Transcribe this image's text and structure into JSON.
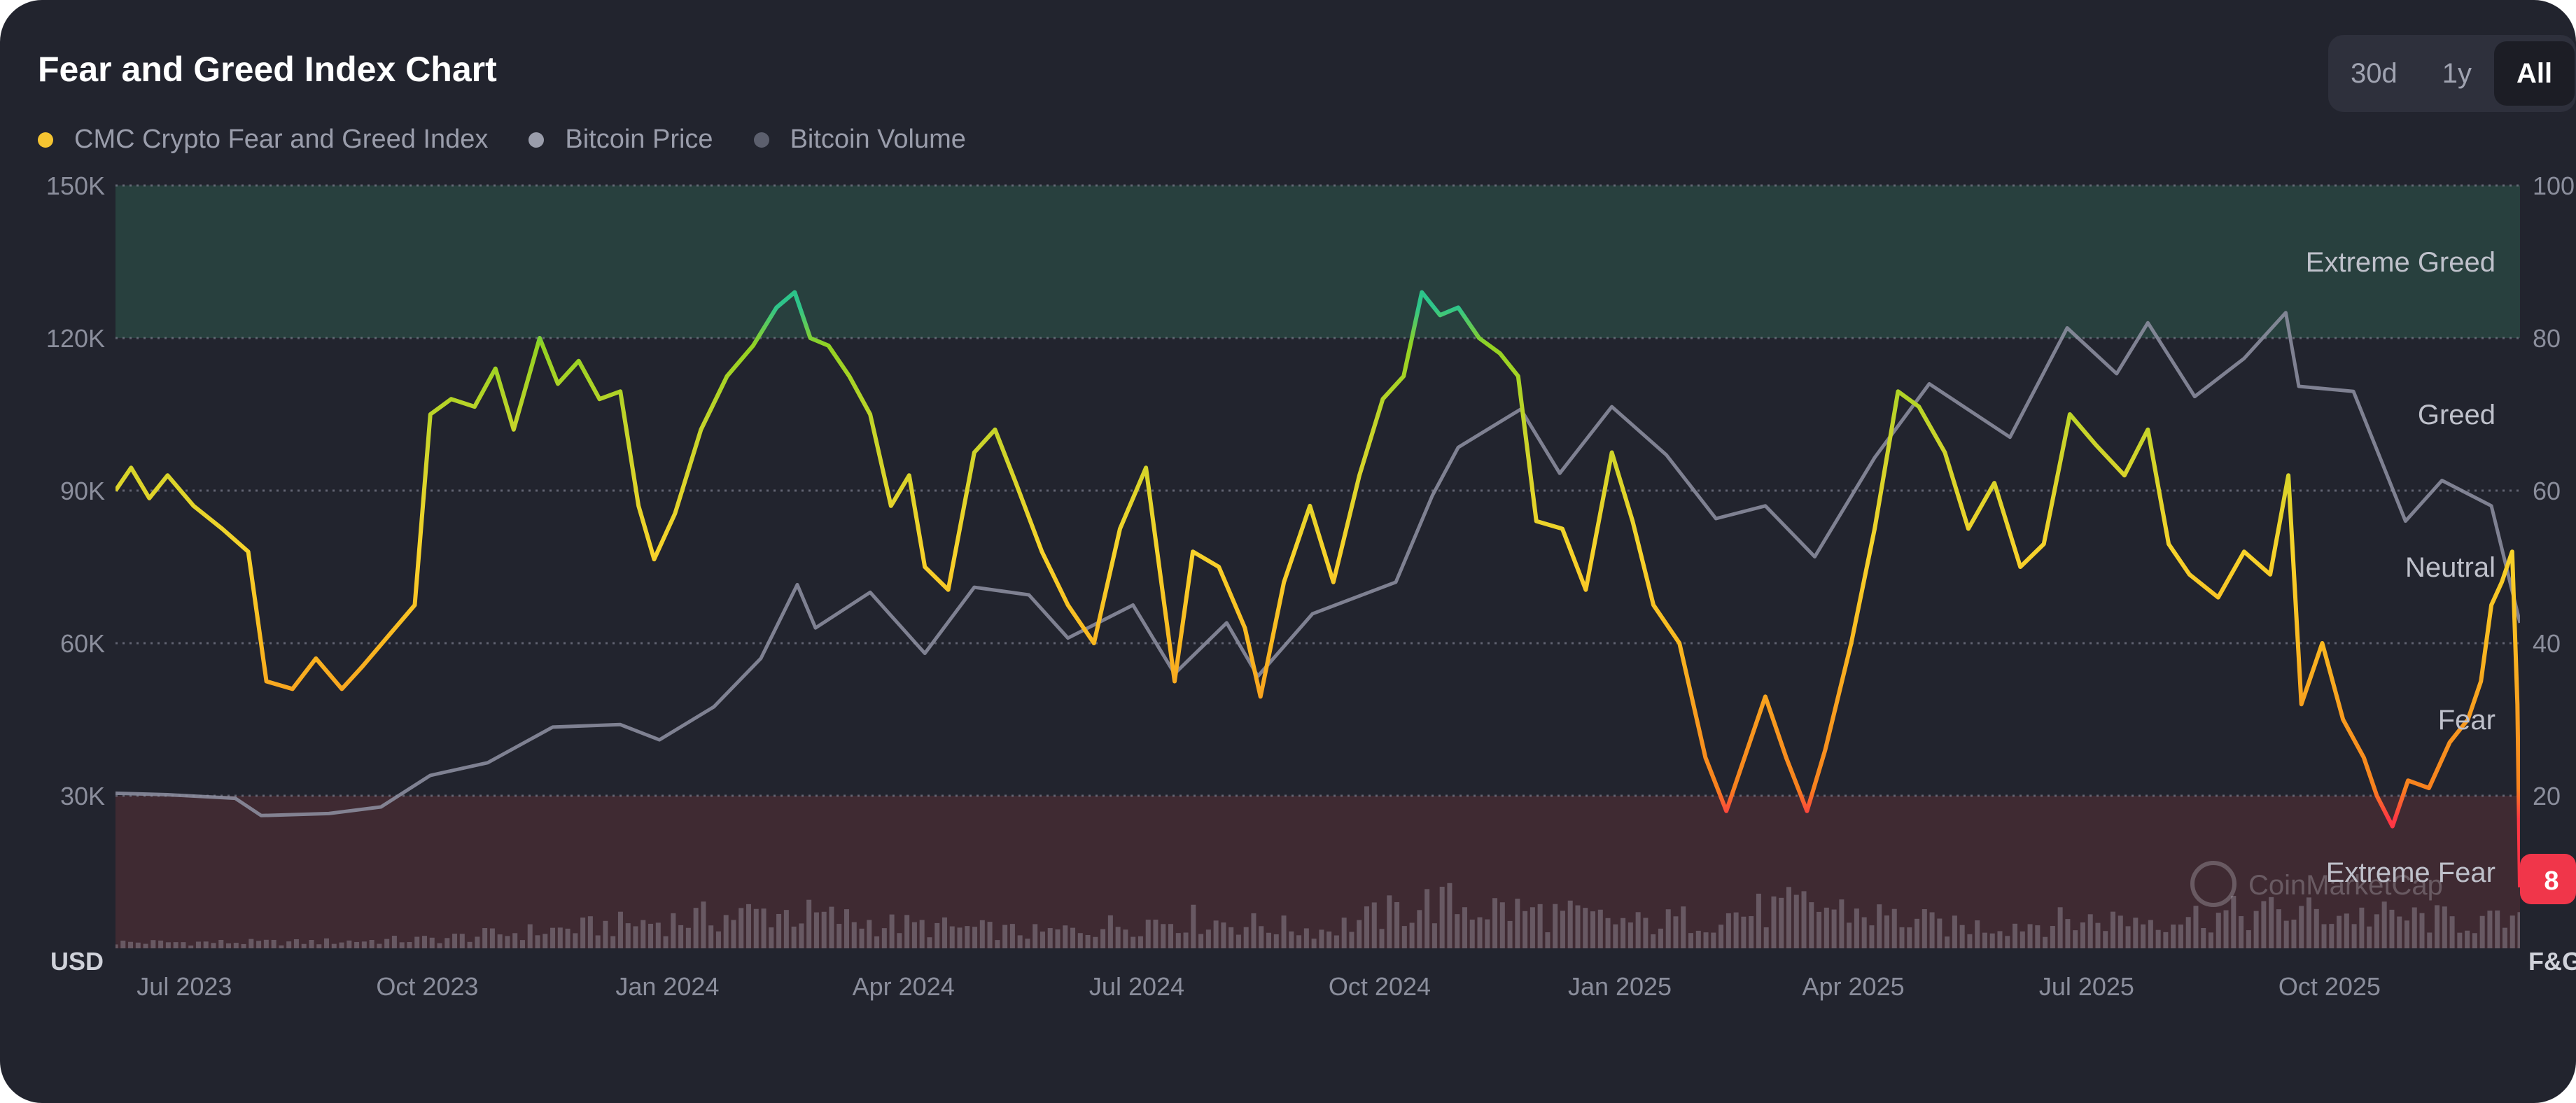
{
  "title": "Fear and Greed Index Chart",
  "range_buttons": [
    {
      "label": "30d",
      "active": false
    },
    {
      "label": "1y",
      "active": false
    },
    {
      "label": "All",
      "active": true
    }
  ],
  "legend": [
    {
      "label": "CMC Crypto Fear and Greed Index",
      "color": "#f5c431"
    },
    {
      "label": "Bitcoin Price",
      "color": "#9a9dab"
    },
    {
      "label": "Bitcoin Volume",
      "color": "#5c5f6d"
    }
  ],
  "current_value": "8",
  "watermark": "CoinMarketCap",
  "chart_data": {
    "type": "line",
    "title": "Fear and Greed Index Chart",
    "left_axis": {
      "label": "USD",
      "ticks": [
        "150K",
        "120K",
        "90K",
        "60K",
        "30K"
      ],
      "tick_values": [
        150000,
        120000,
        90000,
        60000,
        30000
      ],
      "range": [
        0,
        150000
      ]
    },
    "right_axis": {
      "label": "F&G",
      "ticks": [
        "100",
        "80",
        "60",
        "40",
        "20"
      ],
      "tick_values": [
        100,
        80,
        60,
        40,
        20
      ],
      "range": [
        0,
        100
      ]
    },
    "x_ticks": [
      {
        "label": "Jul 2023",
        "date": "2023-07-01"
      },
      {
        "label": "Oct 2023",
        "date": "2023-10-01"
      },
      {
        "label": "Jan 2024",
        "date": "2024-01-01"
      },
      {
        "label": "Apr 2024",
        "date": "2024-04-01"
      },
      {
        "label": "Jul 2024",
        "date": "2024-07-01"
      },
      {
        "label": "Oct 2024",
        "date": "2024-10-01"
      },
      {
        "label": "Jan 2025",
        "date": "2025-01-01"
      },
      {
        "label": "Apr 2025",
        "date": "2025-04-01"
      },
      {
        "label": "Jul 2025",
        "date": "2025-07-01"
      },
      {
        "label": "Oct 2025",
        "date": "2025-10-01"
      }
    ],
    "x_range": [
      "2023-06-25",
      "2026-01-04"
    ],
    "zones": [
      {
        "label": "Extreme Greed",
        "from": 80,
        "to": 100,
        "color": "#2b4a44"
      },
      {
        "label": "Greed",
        "from": 60,
        "to": 80
      },
      {
        "label": "Neutral",
        "from": 40,
        "to": 60
      },
      {
        "label": "Fear",
        "from": 20,
        "to": 40
      },
      {
        "label": "Extreme Fear",
        "from": 0,
        "to": 20,
        "color": "#4a2c34"
      }
    ],
    "grid": true,
    "legend_position": "top-left",
    "series": [
      {
        "name": "CMC Crypto Fear and Greed Index",
        "axis": "right",
        "points": [
          [
            "2023-06-25",
            60
          ],
          [
            "2023-07-01",
            63
          ],
          [
            "2023-07-08",
            59
          ],
          [
            "2023-07-15",
            62
          ],
          [
            "2023-07-25",
            58
          ],
          [
            "2023-08-05",
            55
          ],
          [
            "2023-08-15",
            52
          ],
          [
            "2023-08-22",
            35
          ],
          [
            "2023-09-01",
            34
          ],
          [
            "2023-09-10",
            38
          ],
          [
            "2023-09-20",
            34
          ],
          [
            "2023-09-28",
            37
          ],
          [
            "2023-10-08",
            41
          ],
          [
            "2023-10-18",
            45
          ],
          [
            "2023-10-24",
            70
          ],
          [
            "2023-11-01",
            72
          ],
          [
            "2023-11-10",
            71
          ],
          [
            "2023-11-18",
            76
          ],
          [
            "2023-11-25",
            68
          ],
          [
            "2023-12-05",
            80
          ],
          [
            "2023-12-12",
            74
          ],
          [
            "2023-12-20",
            77
          ],
          [
            "2023-12-28",
            72
          ],
          [
            "2024-01-05",
            73
          ],
          [
            "2024-01-12",
            58
          ],
          [
            "2024-01-18",
            51
          ],
          [
            "2024-01-26",
            57
          ],
          [
            "2024-02-05",
            68
          ],
          [
            "2024-02-15",
            75
          ],
          [
            "2024-02-25",
            79
          ],
          [
            "2024-03-05",
            84
          ],
          [
            "2024-03-12",
            86
          ],
          [
            "2024-03-18",
            80
          ],
          [
            "2024-03-25",
            79
          ],
          [
            "2024-04-02",
            75
          ],
          [
            "2024-04-10",
            70
          ],
          [
            "2024-04-18",
            58
          ],
          [
            "2024-04-25",
            62
          ],
          [
            "2024-05-01",
            50
          ],
          [
            "2024-05-10",
            47
          ],
          [
            "2024-05-20",
            65
          ],
          [
            "2024-05-28",
            68
          ],
          [
            "2024-06-05",
            61
          ],
          [
            "2024-06-15",
            52
          ],
          [
            "2024-06-25",
            45
          ],
          [
            "2024-07-05",
            40
          ],
          [
            "2024-07-15",
            55
          ],
          [
            "2024-07-25",
            63
          ],
          [
            "2024-08-05",
            35
          ],
          [
            "2024-08-12",
            52
          ],
          [
            "2024-08-22",
            50
          ],
          [
            "2024-09-01",
            42
          ],
          [
            "2024-09-07",
            33
          ],
          [
            "2024-09-16",
            48
          ],
          [
            "2024-09-26",
            58
          ],
          [
            "2024-10-05",
            48
          ],
          [
            "2024-10-15",
            62
          ],
          [
            "2024-10-24",
            72
          ],
          [
            "2024-11-01",
            75
          ],
          [
            "2024-11-08",
            86
          ],
          [
            "2024-11-15",
            83
          ],
          [
            "2024-11-22",
            84
          ],
          [
            "2024-11-30",
            80
          ],
          [
            "2024-12-08",
            78
          ],
          [
            "2024-12-15",
            75
          ],
          [
            "2024-12-22",
            56
          ],
          [
            "2025-01-01",
            55
          ],
          [
            "2025-01-10",
            47
          ],
          [
            "2025-01-20",
            65
          ],
          [
            "2025-01-28",
            56
          ],
          [
            "2025-02-05",
            45
          ],
          [
            "2025-02-15",
            40
          ],
          [
            "2025-02-25",
            25
          ],
          [
            "2025-03-05",
            18
          ],
          [
            "2025-03-12",
            25
          ],
          [
            "2025-03-20",
            33
          ],
          [
            "2025-03-28",
            25
          ],
          [
            "2025-04-05",
            18
          ],
          [
            "2025-04-12",
            26
          ],
          [
            "2025-04-22",
            40
          ],
          [
            "2025-05-01",
            55
          ],
          [
            "2025-05-10",
            73
          ],
          [
            "2025-05-18",
            71
          ],
          [
            "2025-05-28",
            65
          ],
          [
            "2025-06-06",
            55
          ],
          [
            "2025-06-16",
            61
          ],
          [
            "2025-06-26",
            50
          ],
          [
            "2025-07-05",
            53
          ],
          [
            "2025-07-15",
            70
          ],
          [
            "2025-07-25",
            66
          ],
          [
            "2025-08-05",
            62
          ],
          [
            "2025-08-14",
            68
          ],
          [
            "2025-08-22",
            53
          ],
          [
            "2025-08-30",
            49
          ],
          [
            "2025-09-10",
            46
          ],
          [
            "2025-09-20",
            52
          ],
          [
            "2025-09-30",
            49
          ],
          [
            "2025-10-07",
            62
          ],
          [
            "2025-10-12",
            32
          ],
          [
            "2025-10-20",
            40
          ],
          [
            "2025-10-28",
            30
          ],
          [
            "2025-11-05",
            25
          ],
          [
            "2025-11-10",
            20
          ],
          [
            "2025-11-16",
            16
          ],
          [
            "2025-11-22",
            22
          ],
          [
            "2025-11-30",
            21
          ],
          [
            "2025-12-08",
            27
          ],
          [
            "2025-12-15",
            30
          ],
          [
            "2025-12-20",
            35
          ],
          [
            "2025-12-24",
            45
          ],
          [
            "2025-12-28",
            48
          ],
          [
            "2026-01-01",
            52
          ],
          [
            "2026-01-03",
            32
          ],
          [
            "2026-01-04",
            8
          ]
        ]
      },
      {
        "name": "Bitcoin Price",
        "axis": "left",
        "points": [
          [
            "2023-06-25",
            30500
          ],
          [
            "2023-07-15",
            30200
          ],
          [
            "2023-08-10",
            29500
          ],
          [
            "2023-08-20",
            26100
          ],
          [
            "2023-09-15",
            26500
          ],
          [
            "2023-10-05",
            27800
          ],
          [
            "2023-10-24",
            34000
          ],
          [
            "2023-11-15",
            36500
          ],
          [
            "2023-12-10",
            43500
          ],
          [
            "2024-01-05",
            44000
          ],
          [
            "2024-01-20",
            41000
          ],
          [
            "2024-02-10",
            47500
          ],
          [
            "2024-02-28",
            57000
          ],
          [
            "2024-03-13",
            71500
          ],
          [
            "2024-03-20",
            63000
          ],
          [
            "2024-04-10",
            70000
          ],
          [
            "2024-05-01",
            58000
          ],
          [
            "2024-05-20",
            71000
          ],
          [
            "2024-06-10",
            69500
          ],
          [
            "2024-06-25",
            61000
          ],
          [
            "2024-07-20",
            67500
          ],
          [
            "2024-08-05",
            54000
          ],
          [
            "2024-08-25",
            64000
          ],
          [
            "2024-09-06",
            53500
          ],
          [
            "2024-09-27",
            65800
          ],
          [
            "2024-10-29",
            72000
          ],
          [
            "2024-11-12",
            89000
          ],
          [
            "2024-11-22",
            98500
          ],
          [
            "2024-12-16",
            106000
          ],
          [
            "2024-12-31",
            93400
          ],
          [
            "2025-01-20",
            106500
          ],
          [
            "2025-02-10",
            97000
          ],
          [
            "2025-03-01",
            84500
          ],
          [
            "2025-03-20",
            87000
          ],
          [
            "2025-04-08",
            77000
          ],
          [
            "2025-05-01",
            96500
          ],
          [
            "2025-05-22",
            111000
          ],
          [
            "2025-06-22",
            100500
          ],
          [
            "2025-07-14",
            122000
          ],
          [
            "2025-08-02",
            113000
          ],
          [
            "2025-08-14",
            123000
          ],
          [
            "2025-09-01",
            108500
          ],
          [
            "2025-09-20",
            116000
          ],
          [
            "2025-10-06",
            125000
          ],
          [
            "2025-10-11",
            110500
          ],
          [
            "2025-11-01",
            109500
          ],
          [
            "2025-11-21",
            84000
          ],
          [
            "2025-12-05",
            92000
          ],
          [
            "2025-12-24",
            87000
          ],
          [
            "2026-01-04",
            64000
          ]
        ]
      },
      {
        "name": "Bitcoin Volume",
        "axis": "left",
        "note_scale": "relative bars in extreme-fear band",
        "points": [
          [
            "2023-06-25",
            2
          ],
          [
            "2023-09-01",
            2
          ],
          [
            "2023-10-24",
            3
          ],
          [
            "2023-12-10",
            6
          ],
          [
            "2024-03-05",
            12
          ],
          [
            "2024-04-15",
            8
          ],
          [
            "2024-06-15",
            5
          ],
          [
            "2024-08-05",
            10
          ],
          [
            "2024-10-01",
            6
          ],
          [
            "2024-11-12",
            15
          ],
          [
            "2024-12-20",
            12
          ],
          [
            "2025-02-01",
            8
          ],
          [
            "2025-03-05",
            11
          ],
          [
            "2025-04-08",
            14
          ],
          [
            "2025-06-01",
            7
          ],
          [
            "2025-07-15",
            9
          ],
          [
            "2025-10-11",
            12
          ],
          [
            "2025-11-21",
            10
          ],
          [
            "2026-01-04",
            8
          ]
        ]
      }
    ]
  }
}
